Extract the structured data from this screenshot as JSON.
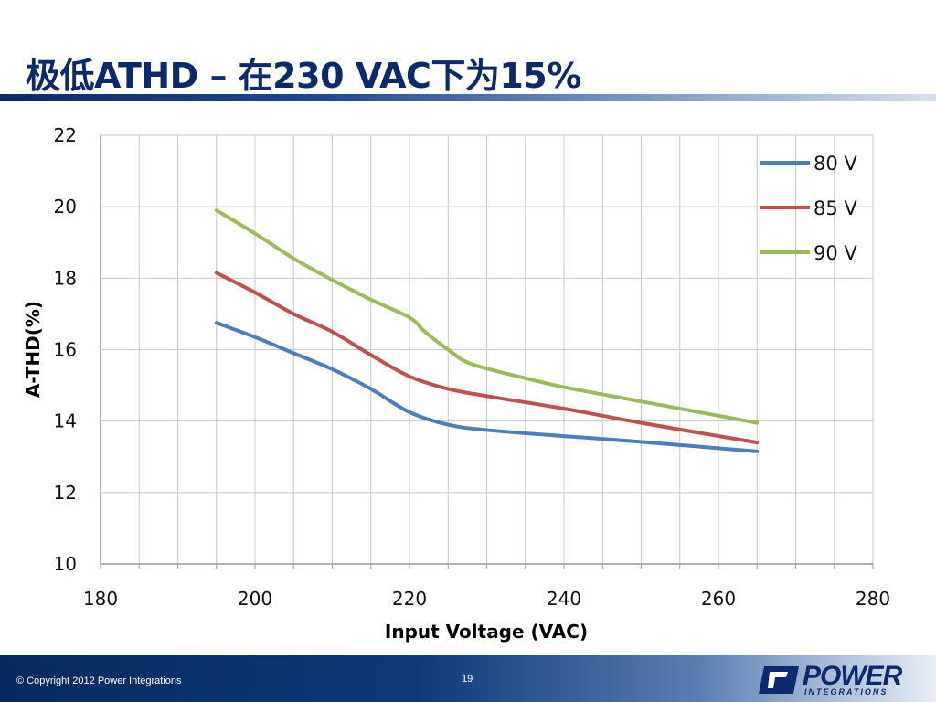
{
  "slide": {
    "title": "极低ATHD – 在230 VAC下为15%"
  },
  "footer": {
    "copyright": "© Copyright 2012 Power Integrations",
    "page_number": "19",
    "logo_text": "POWER",
    "logo_subtext": "INTEGRATIONS"
  },
  "colors": {
    "title": "#0b2a6e",
    "grid": "#c8c8c8",
    "series_80": "#4a7ebf",
    "series_85": "#c0504d",
    "series_90": "#9bbb59"
  },
  "chart_data": {
    "type": "line",
    "title": "",
    "xlabel": "Input Voltage (VAC)",
    "ylabel": "A-THD(%)",
    "xlim": [
      180,
      280
    ],
    "ylim": [
      10,
      22
    ],
    "xticks": [
      180,
      200,
      220,
      240,
      260,
      280
    ],
    "yticks": [
      10,
      12,
      14,
      16,
      18,
      20,
      22
    ],
    "grid": "vertical minor every 5, horizontal every 2",
    "legend_position": "top-right",
    "series": [
      {
        "name": "80 V",
        "color": "#4a7ebf",
        "x": [
          195,
          200,
          205,
          210,
          215,
          220,
          225,
          230,
          240,
          250,
          265
        ],
        "y": [
          16.75,
          16.35,
          15.9,
          15.45,
          14.9,
          14.25,
          13.9,
          13.75,
          13.58,
          13.42,
          13.15
        ]
      },
      {
        "name": "85 V",
        "color": "#c0504d",
        "x": [
          195,
          200,
          205,
          210,
          215,
          220,
          225,
          230,
          240,
          250,
          265
        ],
        "y": [
          18.15,
          17.6,
          17.0,
          16.5,
          15.85,
          15.25,
          14.9,
          14.7,
          14.35,
          13.95,
          13.4
        ]
      },
      {
        "name": "90 V",
        "color": "#9bbb59",
        "x": [
          195,
          200,
          205,
          210,
          215,
          220,
          222,
          225,
          228,
          235,
          240,
          250,
          265
        ],
        "y": [
          19.9,
          19.25,
          18.55,
          17.95,
          17.4,
          16.9,
          16.5,
          16.0,
          15.6,
          15.2,
          14.95,
          14.55,
          13.95
        ]
      }
    ]
  }
}
